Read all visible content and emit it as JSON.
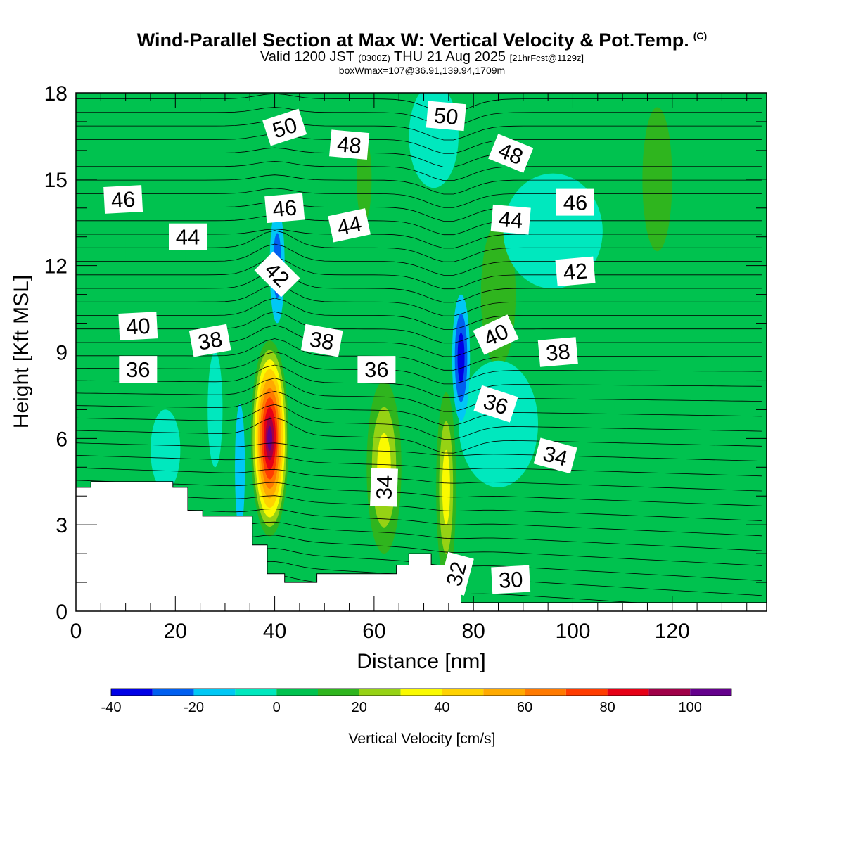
{
  "title": {
    "main": "Wind-Parallel Section at Max W: Vertical Velocity & Pot.Temp.",
    "copyright": "(C)",
    "valid_prefix": "Valid 1200 JST",
    "utc": "(0300Z)",
    "valid_suffix": "THU 21 Aug 2025",
    "forecast": "[21hrFcst@1129z]",
    "box_info": "boxWmax=107@36.91,139.94,1709m"
  },
  "chart_data": {
    "type": "heatmap",
    "xlabel": "Distance [nm]",
    "ylabel": "Height [Kft MSL]",
    "xlim": [
      0,
      139
    ],
    "ylim": [
      0,
      18
    ],
    "x_ticks": [
      0,
      20,
      40,
      60,
      80,
      100,
      120
    ],
    "y_ticks": [
      0,
      3,
      6,
      9,
      12,
      15,
      18
    ],
    "colorbar": {
      "label": "Vertical Velocity [cm/s]",
      "min": -40,
      "max": 110,
      "step": 10,
      "ticks": [
        -40,
        -20,
        0,
        20,
        40,
        60,
        80,
        100
      ],
      "colors": [
        "#0000e6",
        "#005ff0",
        "#00c8f5",
        "#00e8be",
        "#00c24f",
        "#2fb51e",
        "#96d214",
        "#fafa00",
        "#ffd200",
        "#ffaa00",
        "#ff7a00",
        "#ff3c00",
        "#e60016",
        "#a00048",
        "#64008c"
      ]
    },
    "w_cells": [
      {
        "x": 39,
        "y": 6.0,
        "rx": 3.8,
        "ry": 3.4,
        "w": 105
      },
      {
        "x": 62,
        "y": 5.0,
        "rx": 3.5,
        "ry": 3.0,
        "w": 40
      },
      {
        "x": 74.5,
        "y": 4.3,
        "rx": 2.0,
        "ry": 3.3,
        "w": 40
      },
      {
        "x": 77.5,
        "y": 8.8,
        "rx": 1.8,
        "ry": 2.2,
        "w": -38
      },
      {
        "x": 40.5,
        "y": 12.0,
        "rx": 1.5,
        "ry": 2.0,
        "w": -30
      },
      {
        "x": 33,
        "y": 5.0,
        "rx": 1.0,
        "ry": 2.2,
        "w": -15
      }
    ],
    "terrain": [
      [
        0,
        4.3
      ],
      [
        3,
        4.3
      ],
      [
        3,
        4.5
      ],
      [
        19.5,
        4.5
      ],
      [
        19.5,
        4.3
      ],
      [
        22.5,
        4.3
      ],
      [
        22.5,
        3.5
      ],
      [
        25.5,
        3.5
      ],
      [
        25.5,
        3.3
      ],
      [
        35.5,
        3.3
      ],
      [
        35.5,
        2.3
      ],
      [
        38.5,
        2.3
      ],
      [
        38.5,
        1.3
      ],
      [
        42,
        1.3
      ],
      [
        42,
        1.0
      ],
      [
        48.5,
        1.0
      ],
      [
        48.5,
        1.3
      ],
      [
        64.5,
        1.3
      ],
      [
        64.5,
        1.6
      ],
      [
        67,
        1.6
      ],
      [
        67,
        2.0
      ],
      [
        71.5,
        2.0
      ],
      [
        71.5,
        1.6
      ],
      [
        75,
        1.6
      ],
      [
        75,
        0.9
      ],
      [
        77.5,
        0.9
      ],
      [
        77.5,
        0.3
      ],
      [
        139,
        0.3
      ]
    ],
    "theta_labels": [
      {
        "x": 42,
        "y": 16.8,
        "text": "50",
        "angle": -18
      },
      {
        "x": 74.5,
        "y": 17.2,
        "text": "50",
        "angle": 5
      },
      {
        "x": 55,
        "y": 16.2,
        "text": "48",
        "angle": 5
      },
      {
        "x": 87.5,
        "y": 15.9,
        "text": "48",
        "angle": 22
      },
      {
        "x": 9.5,
        "y": 14.3,
        "text": "46",
        "angle": -3
      },
      {
        "x": 42,
        "y": 14.0,
        "text": "46",
        "angle": -5
      },
      {
        "x": 100.5,
        "y": 14.2,
        "text": "46",
        "angle": 0
      },
      {
        "x": 22.5,
        "y": 13.0,
        "text": "44",
        "angle": 0
      },
      {
        "x": 55,
        "y": 13.4,
        "text": "44",
        "angle": -12
      },
      {
        "x": 87.5,
        "y": 13.6,
        "text": "44",
        "angle": 5
      },
      {
        "x": 40.5,
        "y": 11.7,
        "text": "42",
        "angle": 45
      },
      {
        "x": 100.5,
        "y": 11.8,
        "text": "42",
        "angle": -5
      },
      {
        "x": 12.5,
        "y": 9.9,
        "text": "40",
        "angle": -3
      },
      {
        "x": 84.5,
        "y": 9.6,
        "text": "40",
        "angle": -25
      },
      {
        "x": 27,
        "y": 9.4,
        "text": "38",
        "angle": -10
      },
      {
        "x": 49.5,
        "y": 9.4,
        "text": "38",
        "angle": 10
      },
      {
        "x": 97,
        "y": 9.0,
        "text": "38",
        "angle": -5
      },
      {
        "x": 12.5,
        "y": 8.4,
        "text": "36",
        "angle": 0
      },
      {
        "x": 60.5,
        "y": 8.4,
        "text": "36",
        "angle": 0
      },
      {
        "x": 84.5,
        "y": 7.2,
        "text": "36",
        "angle": 18
      },
      {
        "x": 96.5,
        "y": 5.4,
        "text": "34",
        "angle": 15
      },
      {
        "x": 62,
        "y": 4.3,
        "text": "34",
        "angle": -88
      },
      {
        "x": 76.5,
        "y": 1.3,
        "text": "32",
        "angle": -75
      },
      {
        "x": 87.5,
        "y": 1.1,
        "text": "30",
        "angle": -3
      }
    ]
  }
}
